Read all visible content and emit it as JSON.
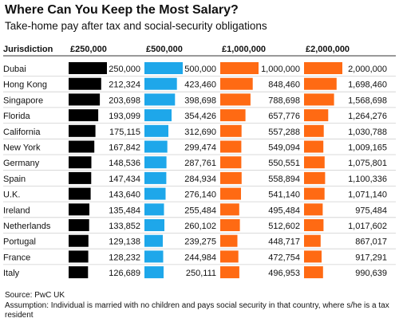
{
  "title": "Where Can You Keep the Most Salary?",
  "subtitle": "Take-home pay after tax and social-security obligations",
  "chart_data": {
    "type": "bar",
    "row_header": "Jurisdiction",
    "categories": [
      "Dubai",
      "Hong Kong",
      "Singapore",
      "Florida",
      "California",
      "New York",
      "Germany",
      "Spain",
      "U.K.",
      "Ireland",
      "Netherlands",
      "Portugal",
      "France",
      "Italy"
    ],
    "series": [
      {
        "name": "£250,000",
        "max": 250000,
        "color": "#000000",
        "labels": [
          "250,000",
          "212,324",
          "203,698",
          "193,099",
          "175,115",
          "167,842",
          "148,536",
          "147,434",
          "143,640",
          "135,484",
          "133,852",
          "129,138",
          "128,232",
          "126,689"
        ],
        "values": [
          250000,
          212324,
          203698,
          193099,
          175115,
          167842,
          148536,
          147434,
          143640,
          135484,
          133852,
          129138,
          128232,
          126689
        ]
      },
      {
        "name": "£500,000",
        "max": 500000,
        "color": "#1ea7ea",
        "labels": [
          "500,000",
          "423,460",
          "398,698",
          "354,426",
          "312,690",
          "299,474",
          "287,761",
          "284,934",
          "276,140",
          "255,484",
          "260,102",
          "239,275",
          "244,984",
          "250,111"
        ],
        "values": [
          500000,
          423460,
          398698,
          354426,
          312690,
          299474,
          287761,
          284934,
          276140,
          255484,
          260102,
          239275,
          244984,
          250111
        ]
      },
      {
        "name": "£1,000,000",
        "max": 1000000,
        "color": "#ff6a13",
        "labels": [
          "1,000,000",
          "848,460",
          "788,698",
          "657,776",
          "557,288",
          "549,094",
          "550,551",
          "558,894",
          "541,140",
          "495,484",
          "512,602",
          "448,717",
          "472,754",
          "496,953"
        ],
        "values": [
          1000000,
          848460,
          788698,
          657776,
          557288,
          549094,
          550551,
          558894,
          541140,
          495484,
          512602,
          448717,
          472754,
          496953
        ]
      },
      {
        "name": "£2,000,000",
        "max": 2000000,
        "color": "#ff6a13",
        "labels": [
          "2,000,000",
          "1,698,460",
          "1,568,698",
          "1,264,276",
          "1,030,788",
          "1,009,165",
          "1,075,801",
          "1,100,336",
          "1,071,140",
          "975,484",
          "1,017,602",
          "867,017",
          "917,291",
          "990,639"
        ],
        "values": [
          2000000,
          1698460,
          1568698,
          1264276,
          1030788,
          1009165,
          1075801,
          1100336,
          1071140,
          975484,
          1017602,
          867017,
          917291,
          990639
        ]
      }
    ],
    "source": "Source: PwC UK",
    "note": "Assumption: Individual is married with no children and pays social security in that country, where s/he is a tax resident"
  }
}
